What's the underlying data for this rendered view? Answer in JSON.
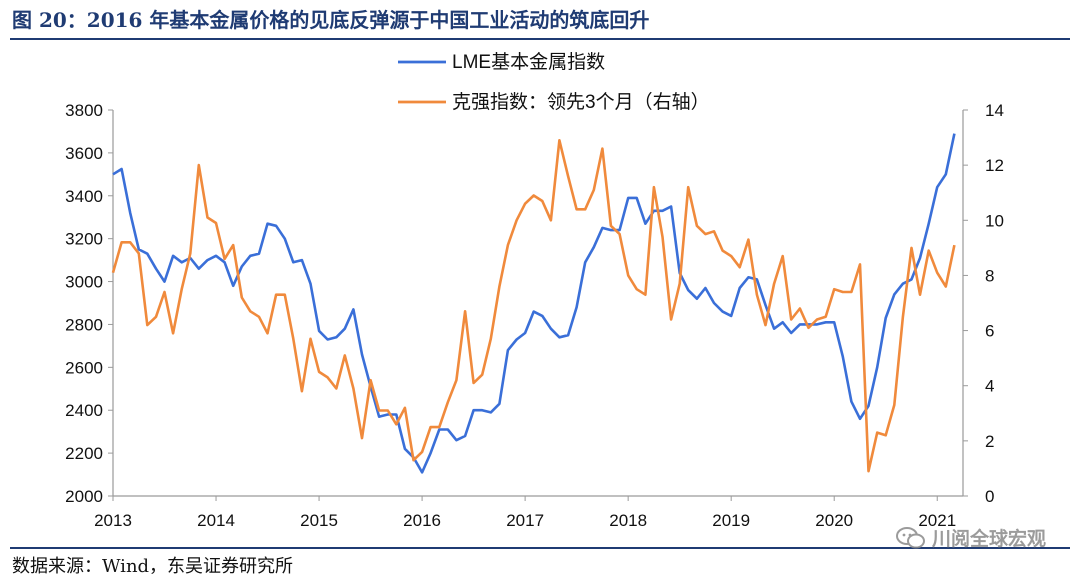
{
  "header": {
    "title": "图 20：2016 年基本金属价格的见底反弹源于中国工业活动的筑底回升"
  },
  "footer": {
    "source": "数据来源：Wind，东吴证券研究所"
  },
  "watermark": {
    "text": "川阅全球宏观",
    "icon": "wechat-icon"
  },
  "colors": {
    "lme": "#3a6fd8",
    "keqiang": "#f08a3c",
    "axis": "#9a9a9a",
    "title": "#1f3b73"
  },
  "chart_data": {
    "type": "line",
    "xlim": [
      2013.0,
      2021.25
    ],
    "x_ticks": [
      2013,
      2014,
      2015,
      2016,
      2017,
      2018,
      2019,
      2020,
      2021
    ],
    "x_tick_labels": [
      "2013",
      "2014",
      "2015",
      "2016",
      "2017",
      "2018",
      "2019",
      "2020",
      "2021"
    ],
    "y_left": {
      "lim": [
        2000,
        3800
      ],
      "ticks": [
        2000,
        2200,
        2400,
        2600,
        2800,
        3000,
        3200,
        3400,
        3600,
        3800
      ]
    },
    "y_right": {
      "lim": [
        0,
        14
      ],
      "ticks": [
        0,
        2,
        4,
        6,
        8,
        10,
        12,
        14
      ]
    },
    "legend": {
      "position": "top-center"
    },
    "series": [
      {
        "name": "LME基本金属指数",
        "axis": "left",
        "x": [
          2013.0,
          2013.083,
          2013.167,
          2013.25,
          2013.333,
          2013.417,
          2013.5,
          2013.583,
          2013.667,
          2013.75,
          2013.833,
          2013.917,
          2014.0,
          2014.083,
          2014.167,
          2014.25,
          2014.333,
          2014.417,
          2014.5,
          2014.583,
          2014.667,
          2014.75,
          2014.833,
          2014.917,
          2015.0,
          2015.083,
          2015.167,
          2015.25,
          2015.333,
          2015.417,
          2015.5,
          2015.583,
          2015.667,
          2015.75,
          2015.833,
          2015.917,
          2016.0,
          2016.083,
          2016.167,
          2016.25,
          2016.333,
          2016.417,
          2016.5,
          2016.583,
          2016.667,
          2016.75,
          2016.833,
          2016.917,
          2017.0,
          2017.083,
          2017.167,
          2017.25,
          2017.333,
          2017.417,
          2017.5,
          2017.583,
          2017.667,
          2017.75,
          2017.833,
          2017.917,
          2018.0,
          2018.083,
          2018.167,
          2018.25,
          2018.333,
          2018.417,
          2018.5,
          2018.583,
          2018.667,
          2018.75,
          2018.833,
          2018.917,
          2019.0,
          2019.083,
          2019.167,
          2019.25,
          2019.333,
          2019.417,
          2019.5,
          2019.583,
          2019.667,
          2019.75,
          2019.833,
          2019.917,
          2020.0,
          2020.083,
          2020.167,
          2020.25,
          2020.333,
          2020.417,
          2020.5,
          2020.583,
          2020.667,
          2020.75,
          2020.833,
          2020.917,
          2021.0,
          2021.083,
          2021.167
        ],
        "values": [
          3500,
          3525,
          3320,
          3150,
          3130,
          3060,
          3000,
          3120,
          3090,
          3110,
          3060,
          3100,
          3120,
          3090,
          2980,
          3070,
          3120,
          3130,
          3270,
          3260,
          3200,
          3090,
          3100,
          2990,
          2770,
          2730,
          2740,
          2780,
          2870,
          2660,
          2510,
          2370,
          2380,
          2380,
          2220,
          2180,
          2110,
          2200,
          2310,
          2310,
          2260,
          2280,
          2400,
          2400,
          2390,
          2430,
          2680,
          2730,
          2760,
          2860,
          2840,
          2780,
          2740,
          2750,
          2880,
          3090,
          3160,
          3250,
          3240,
          3240,
          3390,
          3390,
          3270,
          3330,
          3330,
          3350,
          3040,
          2960,
          2920,
          2970,
          2900,
          2860,
          2840,
          2970,
          3020,
          3010,
          2890,
          2780,
          2810,
          2760,
          2800,
          2800,
          2800,
          2810,
          2810,
          2650,
          2440,
          2360,
          2420,
          2600,
          2830,
          2940,
          2990,
          3010,
          3110,
          3270,
          3440,
          3500,
          3690
        ]
      },
      {
        "name": "克强指数：领先3个月（右轴）",
        "axis": "right",
        "x": [
          2013.0,
          2013.083,
          2013.167,
          2013.25,
          2013.333,
          2013.417,
          2013.5,
          2013.583,
          2013.667,
          2013.75,
          2013.833,
          2013.917,
          2014.0,
          2014.083,
          2014.167,
          2014.25,
          2014.333,
          2014.417,
          2014.5,
          2014.583,
          2014.667,
          2014.75,
          2014.833,
          2014.917,
          2015.0,
          2015.083,
          2015.167,
          2015.25,
          2015.333,
          2015.417,
          2015.5,
          2015.583,
          2015.667,
          2015.75,
          2015.833,
          2015.917,
          2016.0,
          2016.083,
          2016.167,
          2016.25,
          2016.333,
          2016.417,
          2016.5,
          2016.583,
          2016.667,
          2016.75,
          2016.833,
          2016.917,
          2017.0,
          2017.083,
          2017.167,
          2017.25,
          2017.333,
          2017.417,
          2017.5,
          2017.583,
          2017.667,
          2017.75,
          2017.833,
          2017.917,
          2018.0,
          2018.083,
          2018.167,
          2018.25,
          2018.333,
          2018.417,
          2018.5,
          2018.583,
          2018.667,
          2018.75,
          2018.833,
          2018.917,
          2019.0,
          2019.083,
          2019.167,
          2019.25,
          2019.333,
          2019.417,
          2019.5,
          2019.583,
          2019.667,
          2019.75,
          2019.833,
          2019.917,
          2020.0,
          2020.083,
          2020.167,
          2020.25,
          2020.333,
          2020.417,
          2020.5,
          2020.583,
          2020.667,
          2020.75,
          2020.833,
          2020.917,
          2021.0,
          2021.083,
          2021.167
        ],
        "values": [
          8.1,
          9.2,
          9.2,
          8.8,
          6.2,
          6.5,
          7.4,
          5.9,
          7.5,
          8.8,
          12.0,
          10.1,
          9.9,
          8.6,
          9.1,
          7.2,
          6.7,
          6.5,
          5.9,
          7.3,
          7.3,
          5.7,
          3.8,
          5.7,
          4.5,
          4.3,
          3.9,
          5.1,
          3.9,
          2.1,
          4.2,
          3.1,
          3.1,
          2.6,
          3.2,
          1.3,
          1.6,
          2.5,
          2.5,
          3.4,
          4.2,
          6.7,
          4.1,
          4.4,
          5.7,
          7.6,
          9.1,
          10.0,
          10.6,
          10.9,
          10.7,
          10.0,
          12.9,
          11.6,
          10.4,
          10.4,
          11.1,
          12.6,
          9.8,
          9.5,
          8.0,
          7.5,
          7.3,
          11.2,
          9.4,
          6.4,
          7.7,
          11.2,
          9.8,
          9.5,
          9.6,
          8.9,
          8.7,
          8.3,
          9.3,
          7.3,
          6.2,
          7.7,
          8.7,
          6.4,
          6.8,
          6.1,
          6.4,
          6.5,
          7.5,
          7.4,
          7.4,
          8.4,
          0.9,
          2.3,
          2.2,
          3.3,
          6.5,
          9.0,
          7.3,
          8.9,
          8.1,
          7.6,
          9.1
        ]
      }
    ]
  }
}
